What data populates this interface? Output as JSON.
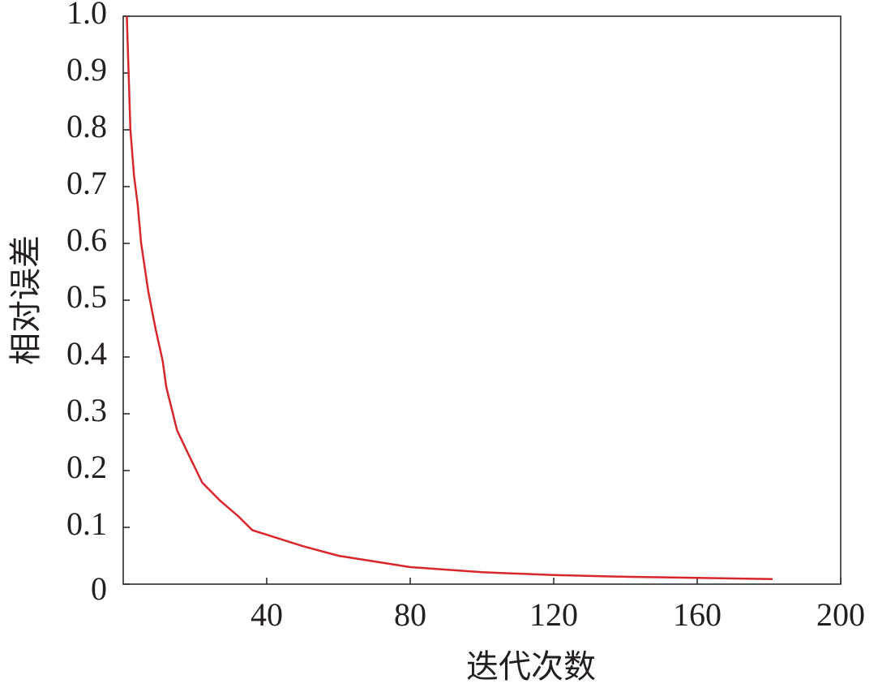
{
  "chart_data": {
    "type": "line",
    "x_label": "迭代次数",
    "y_label": "相对误差",
    "x": [
      1,
      2,
      3,
      4,
      5,
      7,
      9,
      11,
      12,
      15,
      18,
      22,
      27,
      32,
      36,
      40,
      50,
      60,
      80,
      100,
      120,
      140,
      160,
      181
    ],
    "series": [
      {
        "color": "#d7262c",
        "values": [
          1.0,
          0.8,
          0.72,
          0.67,
          0.6,
          0.515,
          0.45,
          0.393,
          0.347,
          0.271,
          0.231,
          0.179,
          0.147,
          0.12,
          0.095,
          0.087,
          0.067,
          0.05,
          0.03,
          0.021,
          0.016,
          0.013,
          0.011,
          0.009
        ]
      }
    ],
    "xlim": [
      0,
      200
    ],
    "xticks": [
      40,
      80,
      120,
      160,
      200
    ],
    "ylim": [
      0,
      1
    ],
    "yticks": [
      0,
      0.1,
      0.2,
      0.3,
      0.4,
      0.5,
      0.6,
      0.7,
      0.8,
      0.9,
      {
        "value": 1,
        "label": "1.0"
      }
    ]
  }
}
